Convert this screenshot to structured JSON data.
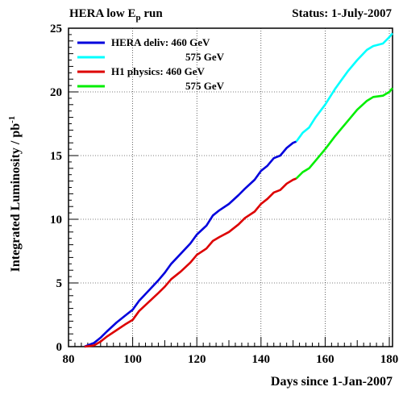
{
  "header": {
    "title_prefix": "HERA low E",
    "title_sub": "p",
    "title_suffix": " run",
    "status": "Status: 1-July-2007"
  },
  "chart_data": {
    "type": "line",
    "title": "HERA low Ep run",
    "subtitle": "Status: 1-July-2007",
    "xlabel": "Days since 1-Jan-2007",
    "ylabel": "Integrated Luminosity / pb",
    "ylabel_exponent": "-1",
    "xlim": [
      80,
      181
    ],
    "ylim": [
      0,
      25
    ],
    "xticks": [
      80,
      100,
      120,
      140,
      160,
      180
    ],
    "yticks": [
      0,
      5,
      10,
      15,
      20,
      25
    ],
    "grid": true,
    "legend_position": "top-left",
    "series": [
      {
        "name": "HERA deliv: 460 GeV",
        "color": "#0000dd",
        "x": [
          85,
          88,
          90,
          92,
          95,
          98,
          100,
          102,
          105,
          108,
          110,
          112,
          115,
          118,
          120,
          123,
          125,
          127,
          130,
          133,
          135,
          138,
          140,
          142,
          144,
          146,
          148,
          150,
          151
        ],
        "y": [
          0.0,
          0.3,
          0.7,
          1.2,
          1.9,
          2.5,
          2.9,
          3.6,
          4.4,
          5.2,
          5.8,
          6.5,
          7.3,
          8.1,
          8.8,
          9.5,
          10.3,
          10.7,
          11.2,
          11.9,
          12.4,
          13.1,
          13.8,
          14.2,
          14.8,
          15.0,
          15.6,
          16.0,
          16.1
        ]
      },
      {
        "name": "575 GeV",
        "color": "#00ffff",
        "x": [
          151,
          153,
          155,
          157,
          160,
          163,
          165,
          167,
          170,
          173,
          175,
          178,
          180,
          181
        ],
        "y": [
          16.1,
          16.8,
          17.2,
          18.0,
          19.0,
          20.2,
          20.9,
          21.6,
          22.5,
          23.3,
          23.6,
          23.8,
          24.3,
          24.6
        ]
      },
      {
        "name": "H1 physics:  460 GeV",
        "color": "#dd0000",
        "x": [
          85,
          88,
          90,
          92,
          95,
          98,
          100,
          102,
          105,
          108,
          110,
          112,
          115,
          118,
          120,
          123,
          125,
          127,
          130,
          133,
          135,
          138,
          140,
          142,
          144,
          146,
          148,
          150,
          151
        ],
        "y": [
          0.0,
          0.1,
          0.4,
          0.8,
          1.3,
          1.8,
          2.1,
          2.8,
          3.5,
          4.2,
          4.7,
          5.3,
          5.9,
          6.6,
          7.2,
          7.7,
          8.3,
          8.6,
          9.0,
          9.6,
          10.1,
          10.6,
          11.2,
          11.6,
          12.1,
          12.3,
          12.8,
          13.1,
          13.2
        ]
      },
      {
        "name": "575 GeV",
        "color": "#00ee00",
        "x": [
          151,
          153,
          155,
          157,
          160,
          163,
          165,
          167,
          170,
          173,
          175,
          178,
          180,
          181
        ],
        "y": [
          13.2,
          13.7,
          14.0,
          14.6,
          15.5,
          16.5,
          17.1,
          17.7,
          18.6,
          19.3,
          19.6,
          19.7,
          20.0,
          20.3
        ]
      }
    ]
  }
}
